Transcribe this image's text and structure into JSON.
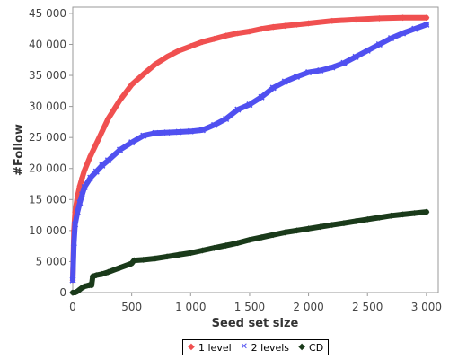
{
  "chart_data": {
    "type": "line",
    "xlabel": "Seed set size",
    "ylabel": "#Follow",
    "xlim": [
      0,
      3100
    ],
    "ylim": [
      0,
      46000
    ],
    "x_ticks": [
      0,
      500,
      1000,
      1500,
      2000,
      2500,
      3000
    ],
    "x_tick_labels": [
      "0",
      "500",
      "1 000",
      "1 500",
      "2 000",
      "2 500",
      "3 000"
    ],
    "y_ticks": [
      0,
      5000,
      10000,
      15000,
      20000,
      25000,
      30000,
      35000,
      40000,
      45000
    ],
    "y_tick_labels": [
      "0",
      "5 000",
      "10 000",
      "15 000",
      "20 000",
      "25 000",
      "30 000",
      "35 000",
      "40 000",
      "45 000"
    ],
    "grid": false,
    "legend_position": "bottom-center",
    "series": [
      {
        "name": "1 level",
        "color": "#f05050",
        "marker": "diamond",
        "x": [
          0,
          10,
          20,
          40,
          60,
          80,
          100,
          150,
          200,
          250,
          300,
          400,
          500,
          600,
          700,
          800,
          900,
          1000,
          1100,
          1200,
          1300,
          1400,
          1500,
          1600,
          1700,
          1800,
          1900,
          2000,
          2200,
          2400,
          2600,
          2800,
          3000
        ],
        "y": [
          2000,
          10000,
          13000,
          15500,
          17200,
          18500,
          19700,
          22000,
          24000,
          26000,
          28000,
          31000,
          33500,
          35200,
          36800,
          38000,
          39000,
          39700,
          40400,
          40900,
          41400,
          41800,
          42100,
          42500,
          42800,
          43000,
          43200,
          43400,
          43800,
          44000,
          44200,
          44300,
          44300
        ]
      },
      {
        "name": "2 levels",
        "color": "#5050f0",
        "marker": "cross",
        "x": [
          0,
          10,
          20,
          40,
          60,
          80,
          100,
          150,
          200,
          250,
          300,
          400,
          500,
          600,
          700,
          800,
          900,
          1000,
          1100,
          1200,
          1300,
          1400,
          1500,
          1600,
          1700,
          1800,
          1900,
          2000,
          2100,
          2200,
          2300,
          2400,
          2500,
          2600,
          2700,
          2800,
          2900,
          3000
        ],
        "y": [
          2000,
          8000,
          11000,
          13000,
          14500,
          15800,
          17000,
          18500,
          19500,
          20500,
          21300,
          23000,
          24200,
          25300,
          25700,
          25800,
          25900,
          26000,
          26200,
          27000,
          28000,
          29500,
          30300,
          31500,
          33000,
          34000,
          34800,
          35500,
          35800,
          36300,
          37000,
          38000,
          39000,
          40000,
          41000,
          41800,
          42500,
          43200
        ]
      },
      {
        "name": "CD",
        "color": "#1a3a1a",
        "marker": "diamond",
        "x": [
          0,
          20,
          40,
          60,
          80,
          100,
          140,
          160,
          170,
          200,
          250,
          300,
          400,
          500,
          520,
          600,
          700,
          800,
          900,
          1000,
          1100,
          1200,
          1300,
          1400,
          1500,
          1600,
          1700,
          1800,
          1900,
          2000,
          2100,
          2200,
          2300,
          2400,
          2500,
          2600,
          2700,
          2800,
          2900,
          3000
        ],
        "y": [
          0,
          0,
          200,
          500,
          800,
          1000,
          1200,
          1200,
          2600,
          2800,
          3000,
          3300,
          4000,
          4700,
          5200,
          5300,
          5500,
          5800,
          6100,
          6400,
          6800,
          7200,
          7600,
          8000,
          8500,
          8900,
          9300,
          9700,
          10000,
          10300,
          10600,
          10900,
          11200,
          11500,
          11800,
          12100,
          12400,
          12600,
          12800,
          13000
        ]
      }
    ]
  }
}
